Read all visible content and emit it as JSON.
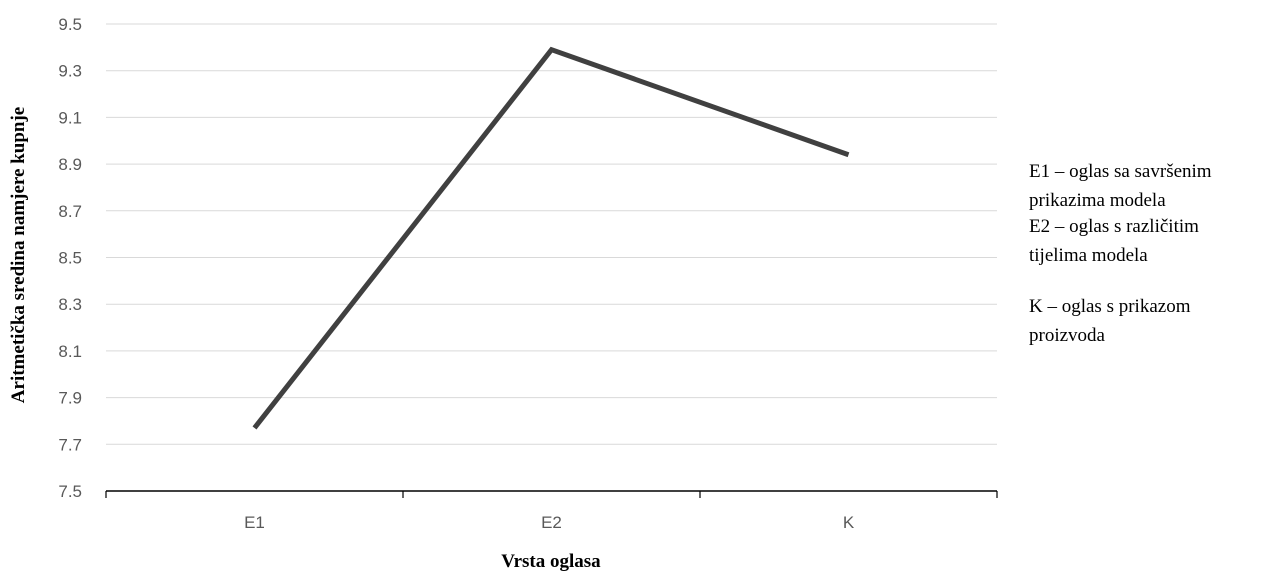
{
  "chart_data": {
    "type": "line",
    "categories": [
      "E1",
      "E2",
      "K"
    ],
    "series": [
      {
        "values": [
          7.77,
          9.39,
          8.94
        ]
      }
    ],
    "title": "",
    "xlabel": "Vrsta oglasa",
    "ylabel": "Aritmetička sredina namjere kupnje",
    "ylim": [
      7.5,
      9.5
    ],
    "yticks": [
      "7.5",
      "7.7",
      "7.9",
      "8.1",
      "8.3",
      "8.5",
      "8.7",
      "8.9",
      "9.1",
      "9.3",
      "9.5"
    ],
    "grid": true,
    "legend_position": "right",
    "notes": [
      [
        "E1 – oglas sa savršenim",
        "prikazima modela"
      ],
      [
        "E2 – oglas s različitim",
        "tijelima modela"
      ],
      [
        "K – oglas s prikazom",
        "proizvoda"
      ]
    ],
    "colors": {
      "line": "#404040",
      "grid": "#d9d9d9",
      "axis": "#000000"
    }
  }
}
